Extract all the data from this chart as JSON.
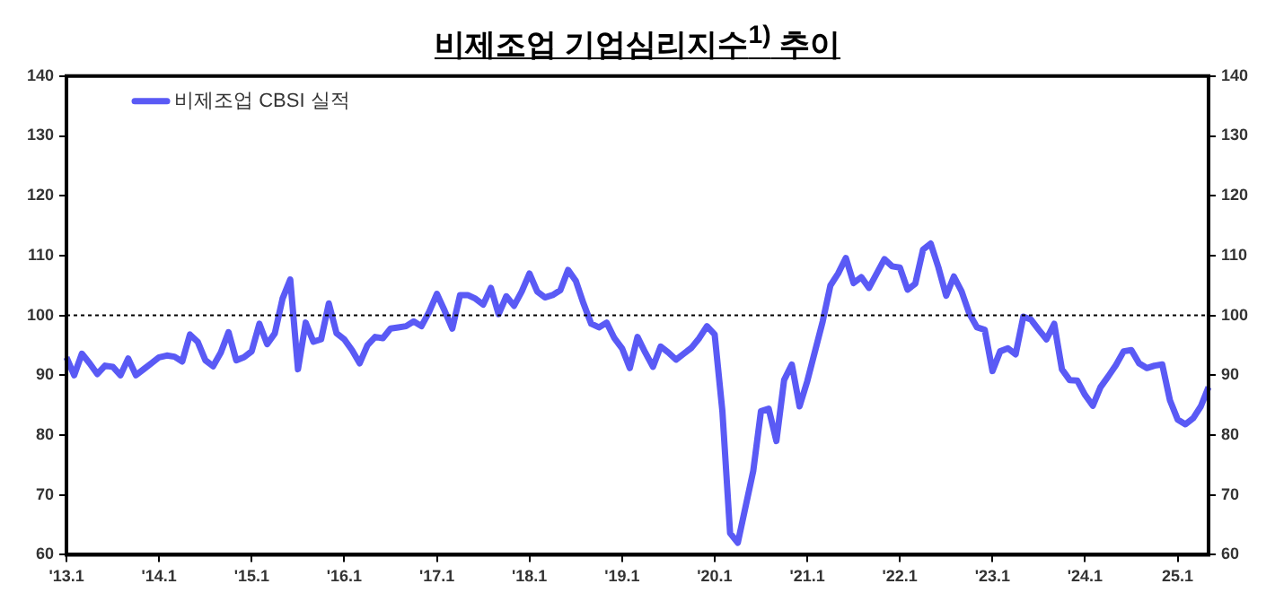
{
  "chart_data": {
    "type": "line",
    "title": "비제조업 기업심리지수$^{1)}$ 추이",
    "categories": [
      "'13.1",
      null,
      null,
      null,
      null,
      null,
      null,
      null,
      null,
      null,
      null,
      null,
      "'14.1",
      null,
      null,
      null,
      null,
      null,
      null,
      null,
      null,
      null,
      null,
      null,
      "'15.1",
      null,
      null,
      null,
      null,
      null,
      null,
      null,
      null,
      null,
      null,
      null,
      "'16.1",
      null,
      null,
      null,
      null,
      null,
      null,
      null,
      null,
      null,
      null,
      null,
      "'17.1",
      null,
      null,
      null,
      null,
      null,
      null,
      null,
      null,
      null,
      null,
      null,
      "'18.1",
      null,
      null,
      null,
      null,
      null,
      null,
      null,
      null,
      null,
      null,
      null,
      "'19.1",
      null,
      null,
      null,
      null,
      null,
      null,
      null,
      null,
      null,
      null,
      null,
      "'20.1",
      null,
      null,
      null,
      null,
      null,
      null,
      null,
      null,
      null,
      null,
      null,
      "'21.1",
      null,
      null,
      null,
      null,
      null,
      null,
      null,
      null,
      null,
      null,
      null,
      "'22.1",
      null,
      null,
      null,
      null,
      null,
      null,
      null,
      null,
      null,
      null,
      null,
      "'23.1",
      null,
      null,
      null,
      null,
      null,
      null,
      null,
      null,
      null,
      null,
      null,
      "'24.1",
      null,
      null,
      null,
      null,
      null,
      null,
      null,
      null,
      null,
      null,
      null,
      "25.1",
      null,
      null,
      null,
      null
    ],
    "series": [
      {
        "name": "비제조업 CBSI 실적",
        "color": "#5a5af5",
        "values": [
          93,
          90,
          93.6,
          92,
          90.2,
          91.6,
          91.4,
          90,
          92.8,
          90,
          91,
          92,
          93,
          93.3,
          93.1,
          92.3,
          96.8,
          95.6,
          92.5,
          91.5,
          93.8,
          97.2,
          92.5,
          93,
          94,
          98.6,
          95.2,
          97,
          102.8,
          106,
          91,
          98.8,
          95.6,
          96,
          102,
          97,
          96,
          94.2,
          92,
          95,
          96.4,
          96.2,
          97.8,
          98,
          98.2,
          99,
          98.2,
          100.6,
          103.6,
          100.8,
          97.8,
          103.4,
          103.4,
          102.8,
          101.8,
          104.6,
          100.2,
          103.2,
          101.6,
          104,
          107,
          104,
          103,
          103.4,
          104.2,
          107.6,
          105.8,
          102,
          98.6,
          98,
          98.8,
          96.2,
          94.5,
          91.2,
          96.4,
          93.8,
          91.4,
          94.8,
          93.8,
          92.6,
          93.6,
          94.6,
          96.2,
          98.2,
          96.8,
          84,
          63.6,
          62,
          68,
          74,
          84,
          84.4,
          79,
          89.2,
          91.8,
          84.8,
          89,
          94,
          99,
          105,
          107,
          109.6,
          105.4,
          106.4,
          104.6,
          107,
          109.4,
          108.2,
          108,
          104.3,
          105.3,
          111,
          112,
          108,
          103.3,
          106.5,
          104,
          100.3,
          98,
          97.6,
          90.7,
          94,
          94.5,
          93.5,
          99.8,
          99.3,
          97.6,
          96,
          98.6,
          91,
          89.2,
          89.1,
          86.7,
          84.9,
          88,
          89.8,
          91.7,
          94,
          94.2,
          92,
          91.2,
          91.6,
          91.8,
          85.8,
          82.6,
          81.8,
          82.8,
          84.8,
          88
        ]
      }
    ],
    "ylim": [
      60,
      140
    ],
    "yticks": [
      60,
      70,
      80,
      90,
      100,
      110,
      120,
      130,
      140
    ],
    "y2lim": [
      60,
      140
    ],
    "y2ticks": [
      60,
      70,
      80,
      90,
      100,
      110,
      120,
      130,
      140
    ],
    "ref_lines": [
      {
        "axis": "y",
        "value": 100,
        "color": "#000000",
        "line_style": "dotted"
      }
    ],
    "grid": false,
    "legend": "top left",
    "marker": "none",
    "line_style": "solid"
  }
}
